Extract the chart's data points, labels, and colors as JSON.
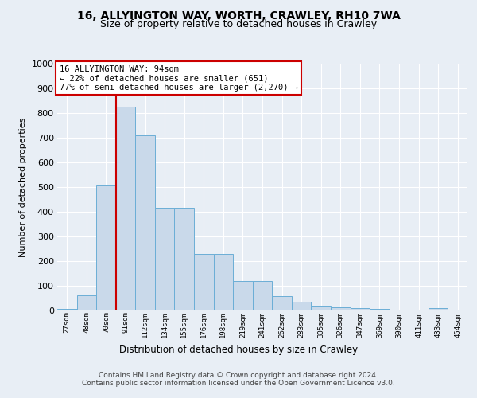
{
  "title1": "16, ALLYINGTON WAY, WORTH, CRAWLEY, RH10 7WA",
  "title2": "Size of property relative to detached houses in Crawley",
  "xlabel": "Distribution of detached houses by size in Crawley",
  "ylabel": "Number of detached properties",
  "bin_labels": [
    "27sqm",
    "48sqm",
    "70sqm",
    "91sqm",
    "112sqm",
    "134sqm",
    "155sqm",
    "176sqm",
    "198sqm",
    "219sqm",
    "241sqm",
    "262sqm",
    "283sqm",
    "305sqm",
    "326sqm",
    "347sqm",
    "369sqm",
    "390sqm",
    "411sqm",
    "433sqm",
    "454sqm"
  ],
  "bar_values": [
    8,
    62,
    505,
    825,
    710,
    415,
    415,
    230,
    230,
    120,
    120,
    58,
    35,
    15,
    12,
    10,
    5,
    3,
    3,
    10,
    0
  ],
  "bar_color": "#c9d9ea",
  "bar_edge_color": "#6baed6",
  "property_line_color": "#cc0000",
  "property_line_idx": 3,
  "annotation_line1": "16 ALLYINGTON WAY: 94sqm",
  "annotation_line2": "← 22% of detached houses are smaller (651)",
  "annotation_line3": "77% of semi-detached houses are larger (2,270) →",
  "annotation_box_facecolor": "white",
  "annotation_box_edgecolor": "#cc0000",
  "ylim": [
    0,
    1000
  ],
  "yticks": [
    0,
    100,
    200,
    300,
    400,
    500,
    600,
    700,
    800,
    900,
    1000
  ],
  "footer1": "Contains HM Land Registry data © Crown copyright and database right 2024.",
  "footer2": "Contains public sector information licensed under the Open Government Licence v3.0.",
  "background_color": "#e8eef5",
  "grid_color": "#ffffff"
}
